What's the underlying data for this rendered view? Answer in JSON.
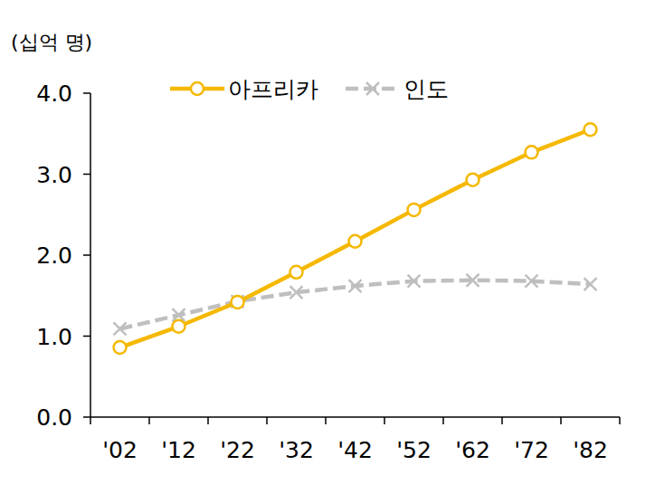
{
  "chart_data": {
    "type": "line",
    "subtitle": "(십억 명)",
    "categories": [
      "'02",
      "'12",
      "'22",
      "'32",
      "'42",
      "'52",
      "'62",
      "'72",
      "'82"
    ],
    "series": [
      {
        "name": "아프리카",
        "color": "#f5b800",
        "marker": "circle",
        "line_style": "solid",
        "values": [
          0.86,
          1.12,
          1.42,
          1.79,
          2.17,
          2.56,
          2.93,
          3.27,
          3.55
        ]
      },
      {
        "name": "인도",
        "color": "#bfbfbf",
        "marker": "x",
        "line_style": "dashed",
        "values": [
          1.09,
          1.26,
          1.43,
          1.54,
          1.62,
          1.68,
          1.69,
          1.68,
          1.64
        ]
      }
    ],
    "ylim": [
      0,
      4
    ],
    "yticks": [
      {
        "value": 0,
        "label": "0.0"
      },
      {
        "value": 1,
        "label": "1.0"
      },
      {
        "value": 2,
        "label": "2.0"
      },
      {
        "value": 3,
        "label": "3.0"
      },
      {
        "value": 4,
        "label": "4.0"
      }
    ],
    "grid": false,
    "legend": "top"
  }
}
